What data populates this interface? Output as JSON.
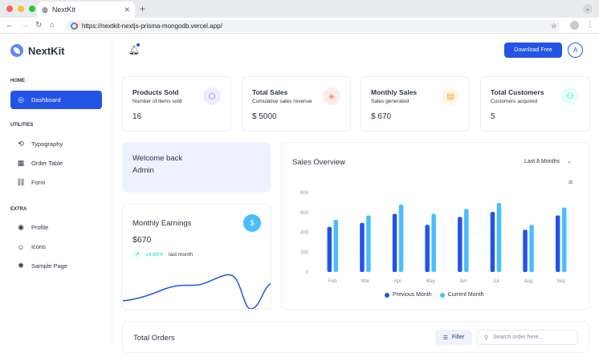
{
  "browser": {
    "tab_title": "NextKit",
    "url": "https://nextkit-nextjs-prisma-mongodb.vercel.app/"
  },
  "app": {
    "name": "NextKit"
  },
  "sidebar": {
    "sections": [
      {
        "heading": "HOME",
        "items": [
          {
            "label": "Dashboard",
            "icon": "apps-icon",
            "active": true
          }
        ]
      },
      {
        "heading": "UTILITIES",
        "items": [
          {
            "label": "Typography",
            "icon": "typography-icon"
          },
          {
            "label": "Order Table",
            "icon": "table-icon"
          },
          {
            "label": "Form",
            "icon": "form-icon"
          }
        ]
      },
      {
        "heading": "EXTRA",
        "items": [
          {
            "label": "Profile",
            "icon": "profile-icon"
          },
          {
            "label": "Icons",
            "icon": "smile-icon"
          },
          {
            "label": "Sample Page",
            "icon": "aperture-icon"
          }
        ]
      }
    ]
  },
  "topbar": {
    "download_label": "Download Free",
    "avatar_letter": "A"
  },
  "stats": [
    {
      "title": "Products Sold",
      "subtitle": "Number of items sold",
      "value": "16",
      "icon": "box-icon",
      "color": "#8e5cf7",
      "bg": "#f1ebff"
    },
    {
      "title": "Total Sales",
      "subtitle": "Cumulative sales revenue",
      "value": "$ 5000",
      "icon": "cube-icon",
      "color": "#fa896b",
      "bg": "#fdede8"
    },
    {
      "title": "Monthly Sales",
      "subtitle": "Sales generated",
      "value": "$ 670",
      "icon": "calendar-icon",
      "color": "#f5a623",
      "bg": "#fef5e5"
    },
    {
      "title": "Total Customers",
      "subtitle": "Customers acquired",
      "value": "5",
      "icon": "users-icon",
      "color": "#13deb9",
      "bg": "#e6fffa"
    }
  ],
  "welcome": {
    "line1": "Welcome back",
    "line2": "Admin"
  },
  "earnings": {
    "title": "Monthly Earnings",
    "value": "$670",
    "change": "14.68%",
    "period": "last month"
  },
  "sales_overview": {
    "title": "Sales Overview",
    "range_label": "Last 8 Months"
  },
  "chart_data": {
    "type": "bar",
    "categories": [
      "Feb",
      "Mar",
      "Apr",
      "May",
      "Jun",
      "Jul",
      "Aug",
      "Sep"
    ],
    "series": [
      {
        "name": "Previous Month",
        "values": [
          455,
          495,
          585,
          475,
          555,
          605,
          425,
          570
        ],
        "color": "#2454e6"
      },
      {
        "name": "Current Month",
        "values": [
          525,
          570,
          680,
          585,
          635,
          695,
          475,
          650
        ],
        "color": "#49beff"
      }
    ],
    "yticks": [
      0,
      200,
      400,
      600,
      800
    ],
    "ylim": [
      0,
      800
    ]
  },
  "orders": {
    "title": "Total Orders",
    "filter_label": "Filter",
    "search_placeholder": "Search order here..."
  }
}
